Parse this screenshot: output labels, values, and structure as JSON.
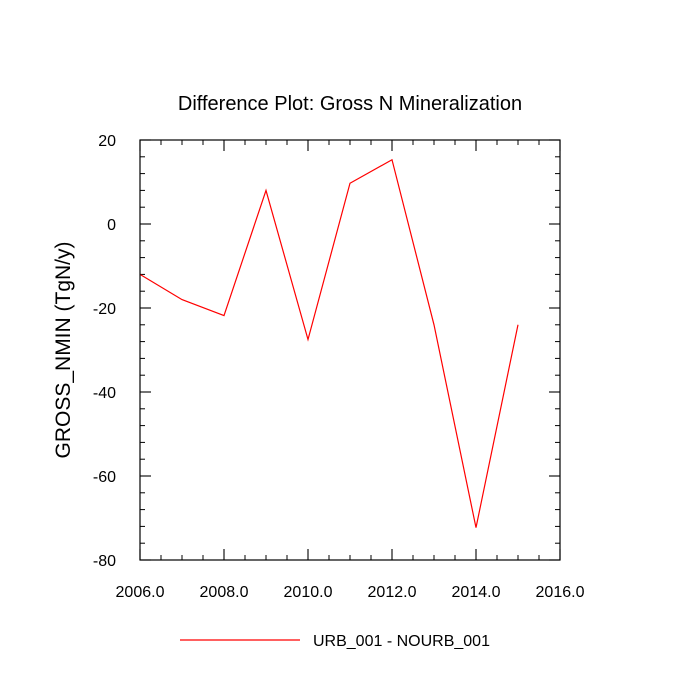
{
  "chart_data": {
    "type": "line",
    "title": "Difference Plot: Gross N Mineralization",
    "xlabel": "",
    "ylabel": "GROSS_NMIN  (TgN/y)",
    "xlim": [
      2006,
      2016
    ],
    "ylim": [
      -80,
      20
    ],
    "x_ticks": [
      2006,
      2008,
      2010,
      2012,
      2014,
      2016
    ],
    "x_tick_labels": [
      "2006.0",
      "2008.0",
      "2010.0",
      "2012.0",
      "2014.0",
      "2016.0"
    ],
    "y_ticks": [
      -80,
      -60,
      -40,
      -20,
      0,
      20
    ],
    "y_tick_labels": [
      "-80",
      "-60",
      "-40",
      "-20",
      "0",
      "20"
    ],
    "grid": false,
    "legend_position": "bottom-center",
    "series": [
      {
        "name": "URB_001 - NOURB_001",
        "color": "#ff0000",
        "x": [
          2006,
          2007,
          2008,
          2009,
          2010,
          2011,
          2012,
          2013,
          2014,
          2015
        ],
        "values": [
          -12,
          -18,
          -21.8,
          8,
          -27.5,
          9.7,
          15.3,
          -24,
          -72.3,
          -24
        ]
      }
    ]
  }
}
